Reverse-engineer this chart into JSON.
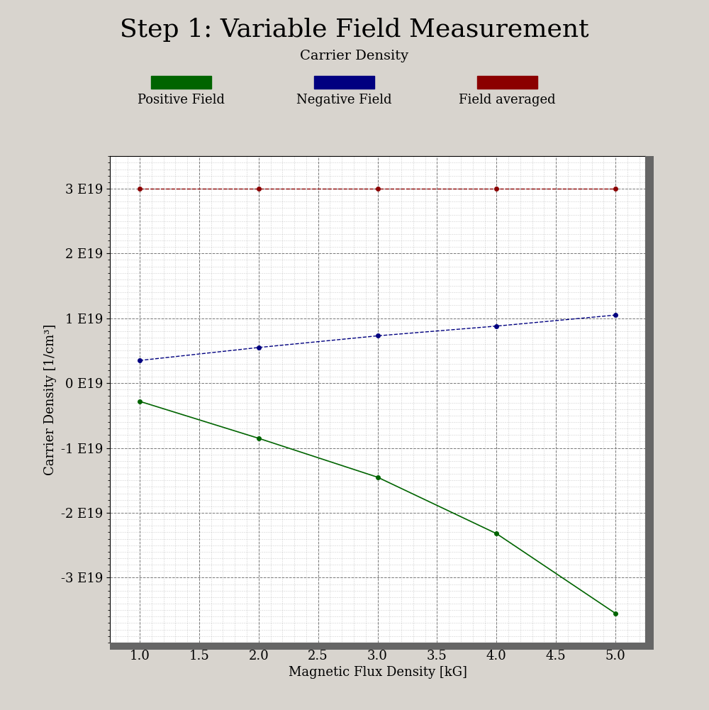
{
  "title": "Step 1: Variable Field Measurement",
  "subtitle": "Carrier Density",
  "xlabel": "Magnetic Flux Density [kG]",
  "ylabel": "Carrier Density [1/cm³]",
  "background_color": "#d8d4ce",
  "plot_bg_color": "#ffffff",
  "x_values": [
    1.0,
    2.0,
    3.0,
    4.0,
    5.0
  ],
  "red_y": [
    3e+19,
    3e+19,
    3e+19,
    3e+19,
    3e+19
  ],
  "blue_y": [
    3.5e+18,
    5.5e+18,
    7.3e+18,
    8.8e+18,
    1.05e+19
  ],
  "green_y": [
    -2.8e+18,
    -8.5e+18,
    -1.45e+19,
    -2.32e+19,
    -3.55e+19
  ],
  "red_color": "#8b0000",
  "blue_color": "#000080",
  "green_color": "#006400",
  "legend_labels": [
    "Positive Field",
    "Negative Field",
    "Field averaged"
  ],
  "legend_colors": [
    "#006400",
    "#000080",
    "#8b0000"
  ],
  "xlim": [
    0.75,
    5.25
  ],
  "ylim": [
    -4e+19,
    3.5e+19
  ],
  "yticks": [
    -3e+19,
    -2e+19,
    -1e+19,
    0,
    1e+19,
    2e+19,
    3e+19
  ],
  "ytick_labels": [
    "-3 E19",
    "-2 E19",
    "-1 E19",
    "0 E19",
    "1 E19",
    "2 E19",
    "3 E19"
  ],
  "xticks": [
    1.0,
    1.5,
    2.0,
    2.5,
    3.0,
    3.5,
    4.0,
    4.5,
    5.0
  ],
  "xtick_labels": [
    "1.0",
    "1.5",
    "2.0",
    "2.5",
    "3.0",
    "3.5",
    "4.0",
    "4.5",
    "5.0"
  ],
  "title_fontsize": 26,
  "subtitle_fontsize": 14,
  "axis_label_fontsize": 13,
  "tick_fontsize": 13,
  "legend_fontsize": 13,
  "shadow_color": "#555555",
  "border_color": "#222222"
}
